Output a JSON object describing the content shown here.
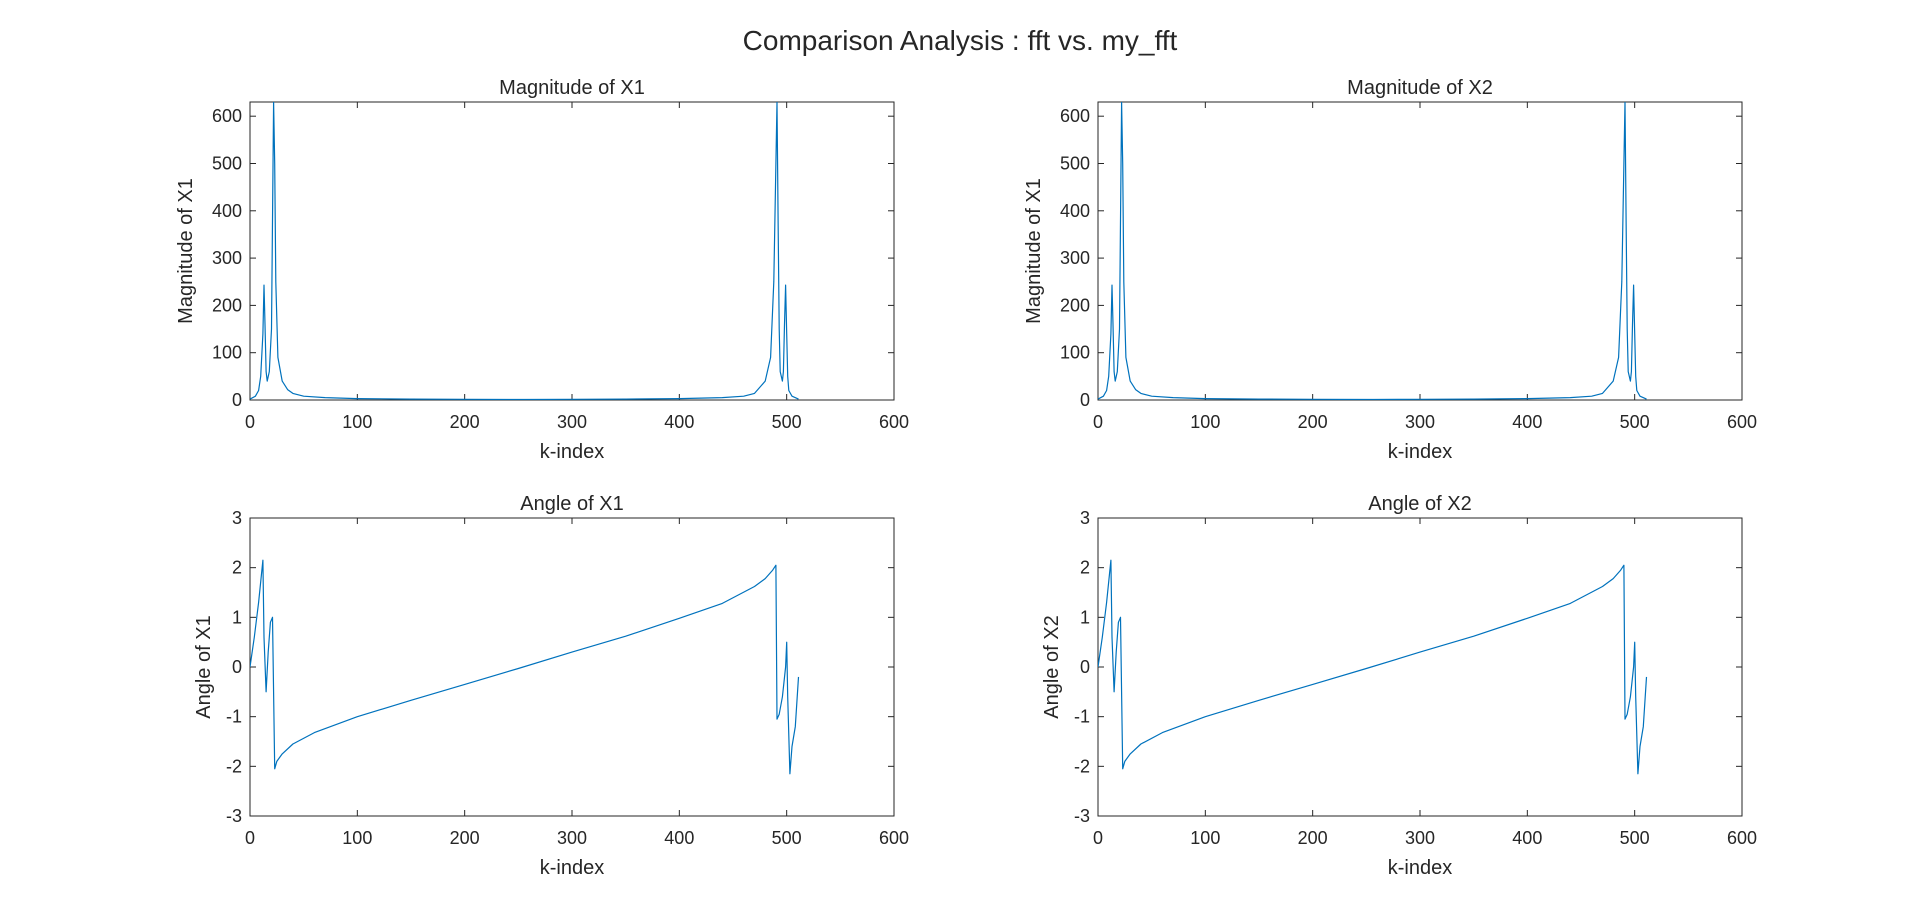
{
  "figure_title": "Comparison Analysis : fft vs. my_fft",
  "colors": {
    "series": "#0072BD",
    "axis": "#262626",
    "background": "#ffffff"
  },
  "chart_data": [
    {
      "type": "line",
      "title": "Magnitude of X1",
      "xlabel": "k-index",
      "ylabel": "Magnitude of X1",
      "xlim": [
        0,
        600
      ],
      "ylim": [
        0,
        630
      ],
      "xticks": [
        0,
        100,
        200,
        300,
        400,
        500,
        600
      ],
      "yticks": [
        0,
        100,
        200,
        300,
        400,
        500,
        600
      ],
      "grid": false,
      "series": [
        {
          "x": [
            0,
            5,
            8,
            10,
            12,
            13,
            14,
            15,
            16,
            18,
            20,
            21,
            22,
            23,
            24,
            26,
            30,
            35,
            40,
            50,
            70,
            100,
            150,
            200,
            256,
            300,
            350,
            400,
            440,
            460,
            470,
            480,
            485,
            488,
            490,
            491,
            492,
            493,
            494,
            496,
            497,
            498,
            499,
            500,
            501,
            502,
            505,
            511
          ],
          "y": [
            2,
            8,
            20,
            50,
            140,
            243,
            160,
            60,
            40,
            60,
            150,
            380,
            630,
            500,
            250,
            90,
            40,
            22,
            14,
            8,
            5,
            3,
            2,
            1.5,
            1,
            1.5,
            2,
            3,
            5,
            8,
            14,
            40,
            90,
            250,
            500,
            630,
            380,
            150,
            60,
            40,
            60,
            160,
            243,
            140,
            50,
            20,
            8,
            2
          ]
        }
      ]
    },
    {
      "type": "line",
      "title": "Magnitude of X2",
      "xlabel": "k-index",
      "ylabel": "Magnitude of X1",
      "xlim": [
        0,
        600
      ],
      "ylim": [
        0,
        630
      ],
      "xticks": [
        0,
        100,
        200,
        300,
        400,
        500,
        600
      ],
      "yticks": [
        0,
        100,
        200,
        300,
        400,
        500,
        600
      ],
      "grid": false,
      "series": [
        {
          "x": [
            0,
            5,
            8,
            10,
            12,
            13,
            14,
            15,
            16,
            18,
            20,
            21,
            22,
            23,
            24,
            26,
            30,
            35,
            40,
            50,
            70,
            100,
            150,
            200,
            256,
            300,
            350,
            400,
            440,
            460,
            470,
            480,
            485,
            488,
            490,
            491,
            492,
            493,
            494,
            496,
            497,
            498,
            499,
            500,
            501,
            502,
            505,
            511
          ],
          "y": [
            2,
            8,
            20,
            50,
            140,
            243,
            160,
            60,
            40,
            60,
            150,
            380,
            630,
            500,
            250,
            90,
            40,
            22,
            14,
            8,
            5,
            3,
            2,
            1.5,
            1,
            1.5,
            2,
            3,
            5,
            8,
            14,
            40,
            90,
            250,
            500,
            630,
            380,
            150,
            60,
            40,
            60,
            160,
            243,
            140,
            50,
            20,
            8,
            2
          ]
        }
      ]
    },
    {
      "type": "line",
      "title": "Angle of X1",
      "xlabel": "k-index",
      "ylabel": "Angle of X1",
      "xlim": [
        0,
        600
      ],
      "ylim": [
        -3,
        3
      ],
      "xticks": [
        0,
        100,
        200,
        300,
        400,
        500,
        600
      ],
      "yticks": [
        -3,
        -2,
        -1,
        0,
        1,
        2,
        3
      ],
      "grid": false,
      "series": [
        {
          "x": [
            0,
            4,
            8,
            12,
            13,
            15,
            17,
            19,
            21,
            23,
            25,
            30,
            40,
            60,
            100,
            150,
            200,
            250,
            300,
            350,
            400,
            440,
            470,
            480,
            487,
            490,
            491,
            493,
            496,
            499,
            500,
            501,
            503,
            505,
            508,
            511
          ],
          "y": [
            0,
            0.6,
            1.3,
            2.15,
            0.6,
            -0.5,
            0.3,
            0.9,
            1.0,
            -2.05,
            -1.9,
            -1.75,
            -1.55,
            -1.32,
            -1.0,
            -0.67,
            -0.35,
            -0.03,
            0.3,
            0.62,
            0.98,
            1.28,
            1.62,
            1.78,
            1.95,
            2.05,
            -1.05,
            -0.95,
            -0.6,
            0.0,
            0.5,
            -0.6,
            -2.15,
            -1.6,
            -1.2,
            -0.2
          ]
        }
      ]
    },
    {
      "type": "line",
      "title": "Angle of X2",
      "xlabel": "k-index",
      "ylabel": "Angle of X2",
      "xlim": [
        0,
        600
      ],
      "ylim": [
        -3,
        3
      ],
      "xticks": [
        0,
        100,
        200,
        300,
        400,
        500,
        600
      ],
      "yticks": [
        -3,
        -2,
        -1,
        0,
        1,
        2,
        3
      ],
      "grid": false,
      "series": [
        {
          "x": [
            0,
            4,
            8,
            12,
            13,
            15,
            17,
            19,
            21,
            23,
            25,
            30,
            40,
            60,
            100,
            150,
            200,
            250,
            300,
            350,
            400,
            440,
            470,
            480,
            487,
            490,
            491,
            493,
            496,
            499,
            500,
            501,
            503,
            505,
            508,
            511
          ],
          "y": [
            0,
            0.6,
            1.3,
            2.15,
            0.6,
            -0.5,
            0.3,
            0.9,
            1.0,
            -2.05,
            -1.9,
            -1.75,
            -1.55,
            -1.32,
            -1.0,
            -0.67,
            -0.35,
            -0.03,
            0.3,
            0.62,
            0.98,
            1.28,
            1.62,
            1.78,
            1.95,
            2.05,
            -1.05,
            -0.95,
            -0.6,
            0.0,
            0.5,
            -0.6,
            -2.15,
            -1.6,
            -1.2,
            -0.2
          ]
        }
      ]
    }
  ]
}
